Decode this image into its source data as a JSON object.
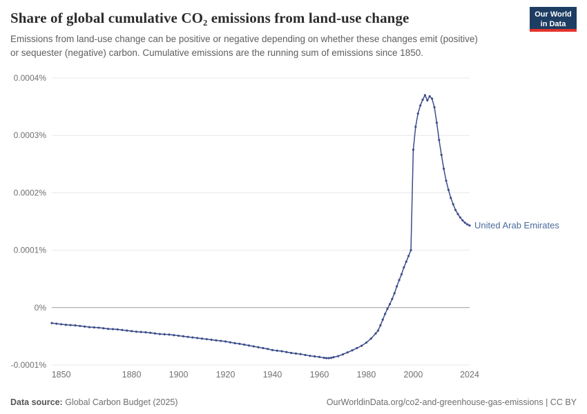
{
  "header": {
    "title": "Share of global cumulative CO₂ emissions from land-use change",
    "logo": {
      "line1": "Our World",
      "line2": "in Data"
    }
  },
  "subtitle": "Emissions from land-use change can be positive or negative depending on whether these changes emit (positive) or sequester (negative) carbon. Cumulative emissions are the running sum of emissions since 1850.",
  "footer": {
    "source_label": "Data source:",
    "source_value": "Global Carbon Budget (2025)",
    "right_text": "OurWorldinData.org/co2-and-greenhouse-gas-emissions | CC BY"
  },
  "colors": {
    "line": "#3b4c8a",
    "entity_label": "#4c6a9c",
    "grid": "#e7e7e7",
    "zero_line": "#9a9a9a",
    "axis_text": "#707070",
    "logo_bg": "#1d3d63",
    "logo_red": "#e5332b"
  },
  "chart_data": {
    "type": "line",
    "title": "Share of global cumulative CO₂ emissions from land-use change",
    "y_unit": "values expressed in millionths of a percent (1e-6 %)",
    "xlim": [
      1846,
      2024
    ],
    "ylim": [
      -100,
      400
    ],
    "grid": true,
    "legend": "end-of-line entity label",
    "y_ticks": [
      {
        "value": 400,
        "label": "0.0004%"
      },
      {
        "value": 300,
        "label": "0.0003%"
      },
      {
        "value": 200,
        "label": "0.0002%"
      },
      {
        "value": 100,
        "label": "0.0001%"
      },
      {
        "value": 0,
        "label": "0%"
      },
      {
        "value": -100,
        "label": "-0.0001%"
      }
    ],
    "x_ticks": [
      {
        "value": 1850,
        "label": "1850"
      },
      {
        "value": 1880,
        "label": "1880"
      },
      {
        "value": 1900,
        "label": "1900"
      },
      {
        "value": 1920,
        "label": "1920"
      },
      {
        "value": 1940,
        "label": "1940"
      },
      {
        "value": 1960,
        "label": "1960"
      },
      {
        "value": 1980,
        "label": "1980"
      },
      {
        "value": 2000,
        "label": "2000"
      },
      {
        "value": 2024,
        "label": "2024"
      }
    ],
    "series": [
      {
        "name": "United Arab Emirates",
        "points": [
          [
            1846,
            -27
          ],
          [
            1848,
            -28
          ],
          [
            1850,
            -29
          ],
          [
            1852,
            -30
          ],
          [
            1854,
            -30.5
          ],
          [
            1856,
            -31
          ],
          [
            1858,
            -32
          ],
          [
            1860,
            -33
          ],
          [
            1862,
            -34
          ],
          [
            1864,
            -34.5
          ],
          [
            1866,
            -35
          ],
          [
            1868,
            -36
          ],
          [
            1870,
            -37
          ],
          [
            1872,
            -37.5
          ],
          [
            1874,
            -38
          ],
          [
            1876,
            -39
          ],
          [
            1878,
            -40
          ],
          [
            1880,
            -41
          ],
          [
            1882,
            -42
          ],
          [
            1884,
            -42.5
          ],
          [
            1886,
            -43
          ],
          [
            1888,
            -44
          ],
          [
            1890,
            -45
          ],
          [
            1892,
            -46
          ],
          [
            1894,
            -46.5
          ],
          [
            1896,
            -47
          ],
          [
            1898,
            -48
          ],
          [
            1900,
            -49
          ],
          [
            1902,
            -50
          ],
          [
            1904,
            -51
          ],
          [
            1906,
            -52
          ],
          [
            1908,
            -53
          ],
          [
            1910,
            -54
          ],
          [
            1912,
            -55
          ],
          [
            1914,
            -56
          ],
          [
            1916,
            -57
          ],
          [
            1918,
            -58
          ],
          [
            1920,
            -59
          ],
          [
            1922,
            -60.5
          ],
          [
            1924,
            -62
          ],
          [
            1926,
            -63
          ],
          [
            1928,
            -64.5
          ],
          [
            1930,
            -66
          ],
          [
            1932,
            -67.5
          ],
          [
            1934,
            -69
          ],
          [
            1936,
            -70.5
          ],
          [
            1938,
            -72
          ],
          [
            1940,
            -74
          ],
          [
            1942,
            -75
          ],
          [
            1944,
            -76
          ],
          [
            1946,
            -77.5
          ],
          [
            1948,
            -79
          ],
          [
            1950,
            -80
          ],
          [
            1952,
            -81
          ],
          [
            1954,
            -82.5
          ],
          [
            1956,
            -84
          ],
          [
            1958,
            -85
          ],
          [
            1960,
            -86
          ],
          [
            1962,
            -87.5
          ],
          [
            1963,
            -88
          ],
          [
            1964,
            -88
          ],
          [
            1965,
            -87.5
          ],
          [
            1966,
            -86.5
          ],
          [
            1968,
            -84.5
          ],
          [
            1970,
            -81.5
          ],
          [
            1972,
            -78
          ],
          [
            1974,
            -74.5
          ],
          [
            1976,
            -70.5
          ],
          [
            1978,
            -66.5
          ],
          [
            1980,
            -61
          ],
          [
            1982,
            -54
          ],
          [
            1984,
            -45
          ],
          [
            1985,
            -40
          ],
          [
            1986,
            -31
          ],
          [
            1987,
            -21
          ],
          [
            1988,
            -11
          ],
          [
            1989,
            -2
          ],
          [
            1990,
            6
          ],
          [
            1991,
            15
          ],
          [
            1992,
            25
          ],
          [
            1993,
            37
          ],
          [
            1994,
            48
          ],
          [
            1995,
            58
          ],
          [
            1996,
            70
          ],
          [
            1997,
            80
          ],
          [
            1998,
            90
          ],
          [
            1999,
            100
          ],
          [
            2000,
            275
          ],
          [
            2001,
            315
          ],
          [
            2002,
            338
          ],
          [
            2003,
            352
          ],
          [
            2004,
            362
          ],
          [
            2005,
            370
          ],
          [
            2006,
            361
          ],
          [
            2007,
            368
          ],
          [
            2008,
            364
          ],
          [
            2009,
            349
          ],
          [
            2010,
            322
          ],
          [
            2011,
            292
          ],
          [
            2012,
            266
          ],
          [
            2013,
            242
          ],
          [
            2014,
            221
          ],
          [
            2015,
            205
          ],
          [
            2016,
            191
          ],
          [
            2017,
            180
          ],
          [
            2018,
            170
          ],
          [
            2019,
            163
          ],
          [
            2020,
            157
          ],
          [
            2021,
            152
          ],
          [
            2022,
            148
          ],
          [
            2023,
            145
          ],
          [
            2024,
            143
          ]
        ]
      }
    ]
  }
}
